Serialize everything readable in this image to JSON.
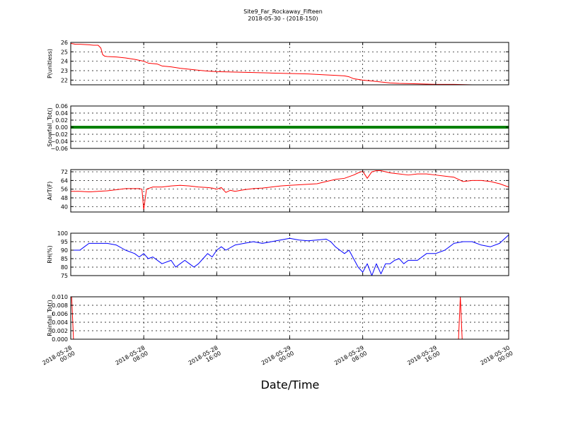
{
  "figure": {
    "title_line1": "Site9_Far_Rockaway_Fifteen",
    "title_line2": "2018-05-30 - (2018-150)",
    "xlabel": "Date/Time",
    "x_ticks": [
      {
        "line1": "2018-05-28",
        "line2": "00:00"
      },
      {
        "line1": "2018-05-28",
        "line2": "08:00"
      },
      {
        "line1": "2018-05-28",
        "line2": "16:00"
      },
      {
        "line1": "2018-05-29",
        "line2": "00:00"
      },
      {
        "line1": "2018-05-29",
        "line2": "08:00"
      },
      {
        "line1": "2018-05-29",
        "line2": "16:00"
      },
      {
        "line1": "2018-05-30",
        "line2": "00:00"
      }
    ]
  },
  "chart_data": [
    {
      "type": "line",
      "ylabel": "P(unitless)",
      "ylim": [
        21.5,
        26
      ],
      "yticks": [
        22,
        23,
        24,
        25,
        26
      ],
      "ytick_labels": [
        "22",
        "23",
        "24",
        "25",
        "26"
      ],
      "grid": true,
      "series": [
        {
          "color": "#ff0000",
          "x": [
            0,
            0.5,
            1,
            2,
            2.5,
            3,
            3.3,
            3.5,
            3.7,
            4,
            5,
            6,
            7,
            8,
            8.5,
            9,
            9.5,
            10,
            11,
            12,
            13,
            14,
            15,
            16,
            18,
            20,
            22,
            24,
            26,
            28,
            29,
            30,
            30.5,
            31,
            32,
            33,
            34,
            35,
            36,
            38,
            40,
            42,
            44,
            46,
            48
          ],
          "values": [
            25.9,
            25.8,
            25.8,
            25.75,
            25.7,
            25.7,
            25.4,
            24.7,
            24.55,
            24.5,
            24.45,
            24.35,
            24.2,
            24.0,
            23.8,
            23.75,
            23.7,
            23.5,
            23.4,
            23.25,
            23.15,
            23.05,
            22.95,
            22.9,
            22.85,
            22.8,
            22.75,
            22.7,
            22.65,
            22.55,
            22.5,
            22.45,
            22.35,
            22.15,
            22.0,
            21.9,
            21.8,
            21.7,
            21.65,
            21.6,
            21.55,
            21.55,
            21.5,
            21.5,
            21.5
          ]
        }
      ]
    },
    {
      "type": "line",
      "ylabel": "Snowfall_Tot()",
      "ylim": [
        -0.06,
        0.06
      ],
      "yticks": [
        -0.06,
        -0.04,
        -0.02,
        0.0,
        0.02,
        0.04,
        0.06
      ],
      "ytick_labels": [
        "−0.06",
        "−0.04",
        "−0.02",
        "0.00",
        "0.02",
        "0.04",
        "0.06"
      ],
      "grid": true,
      "series": [
        {
          "color": "#008000",
          "x": [
            0,
            48
          ],
          "values": [
            0,
            0
          ]
        }
      ]
    },
    {
      "type": "line",
      "ylabel": "AirT(F)",
      "ylim": [
        35,
        74
      ],
      "yticks": [
        40,
        48,
        56,
        64,
        72
      ],
      "ytick_labels": [
        "40",
        "48",
        "56",
        "64",
        "72"
      ],
      "grid": true,
      "series": [
        {
          "color": "#ff0000",
          "x": [
            0,
            1,
            2,
            3,
            4,
            5,
            6,
            7,
            7.5,
            7.8,
            8,
            8.3,
            9,
            10,
            11,
            12,
            13,
            14,
            15,
            15.5,
            16,
            16.5,
            17,
            17.5,
            18,
            19,
            20,
            21,
            22,
            23,
            24,
            25,
            26,
            27,
            28,
            29,
            30,
            31,
            31.5,
            32,
            32.5,
            33,
            33.5,
            34,
            35,
            36,
            37,
            38,
            39,
            40,
            41,
            42,
            43,
            44,
            45,
            46,
            47,
            48
          ],
          "values": [
            54,
            54,
            53.5,
            54,
            54.5,
            55.5,
            56.5,
            56.5,
            56.5,
            56,
            37,
            56,
            58,
            58,
            59,
            59.5,
            59,
            58,
            57.5,
            57,
            56,
            57.5,
            53,
            55,
            54,
            55.5,
            56.5,
            57,
            58,
            59,
            59.5,
            60,
            60.5,
            61,
            63,
            65,
            66,
            69,
            71,
            72.5,
            66,
            72,
            73,
            73,
            71,
            70,
            69,
            70,
            70,
            69,
            68,
            67,
            63,
            64,
            64,
            63,
            61,
            58
          ]
        }
      ]
    },
    {
      "type": "line",
      "ylabel": "RH(%)",
      "ylim": [
        75,
        100
      ],
      "yticks": [
        75,
        80,
        85,
        90,
        95,
        100
      ],
      "ytick_labels": [
        "75",
        "80",
        "85",
        "90",
        "95",
        "100"
      ],
      "grid": true,
      "series": [
        {
          "color": "#0000ff",
          "x": [
            0,
            1,
            1.5,
            2,
            3,
            4,
            5,
            6,
            7,
            7.5,
            8,
            8.5,
            9,
            10,
            11,
            11.5,
            12,
            12.5,
            13,
            13.5,
            14,
            14.5,
            15,
            15.5,
            16,
            16.5,
            17,
            18,
            19,
            20,
            21,
            22,
            23,
            24,
            25,
            26,
            27,
            28,
            28.5,
            29,
            29.5,
            30,
            30.5,
            31,
            31.5,
            32,
            32.5,
            33,
            33.5,
            34,
            34.5,
            35,
            35.5,
            36,
            36.5,
            37,
            38,
            39,
            40,
            41,
            42,
            43,
            44,
            45,
            46,
            47,
            48
          ],
          "values": [
            90,
            90,
            92,
            94,
            94,
            94,
            93,
            90,
            88,
            86,
            88,
            85,
            86,
            82,
            84,
            80,
            82,
            84,
            82,
            80,
            82,
            85,
            88,
            86,
            90,
            92,
            90,
            93,
            94,
            95,
            94,
            95,
            96,
            97,
            96,
            95.5,
            96,
            96.5,
            95,
            92,
            90,
            88,
            90,
            85,
            80,
            77,
            82,
            75,
            82,
            76,
            82,
            82,
            84,
            85,
            82,
            84,
            84,
            88,
            88,
            90,
            94,
            95,
            95,
            93,
            92,
            94,
            99
          ]
        }
      ]
    },
    {
      "type": "line",
      "ylabel": "Rainfall_Tot()",
      "ylim": [
        0,
        0.01
      ],
      "yticks": [
        0,
        0.002,
        0.004,
        0.006,
        0.008,
        0.01
      ],
      "ytick_labels": [
        "0.000",
        "0.002",
        "0.004",
        "0.006",
        "0.008",
        "0.010"
      ],
      "grid": true,
      "series": [
        {
          "color": "#ff0000",
          "x": [
            0,
            0.1,
            0.3,
            42.5,
            42.7,
            42.9,
            48
          ],
          "values": [
            0.01,
            0.01,
            0,
            0,
            0.01,
            0,
            0
          ]
        }
      ]
    }
  ]
}
